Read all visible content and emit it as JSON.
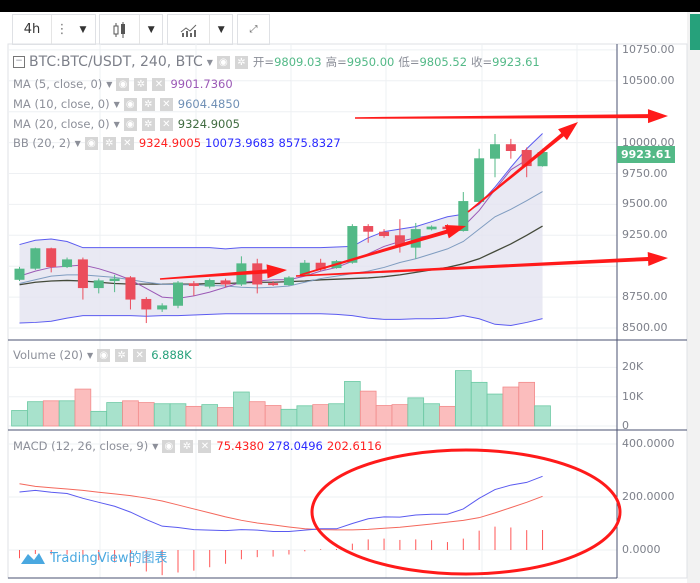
{
  "toolbar": {
    "interval": "4h",
    "more_icon": "vertical-dots-icon",
    "chart_type_icon": "candles-icon",
    "indicators_icon": "indicators-icon",
    "fullscreen_icon": "fullscreen-icon"
  },
  "main_legend": {
    "symbol": "BTC:BTC/USDT, 240, BTC",
    "open_label": "开=",
    "open": "9809.03",
    "high_label": "高=",
    "high": "9950.00",
    "low_label": "低=",
    "low": "9805.52",
    "close_label": "收=",
    "close": "9923.61"
  },
  "indicators": [
    {
      "label": "MA (5, close, 0)",
      "value": "9901.7360",
      "color": "#9b59b6"
    },
    {
      "label": "MA (10, close, 0)",
      "value": "9604.4850",
      "color": "#6f8fb5"
    },
    {
      "label": "MA (20, close, 0)",
      "value": "9324.9005",
      "color": "#3f6b3f"
    },
    {
      "label": "BB (20, 2)",
      "values": [
        "9324.9005",
        "10073.9683",
        "8575.8327"
      ],
      "colors": [
        "#ff2020",
        "#2a2aff",
        "#2a2aff"
      ]
    }
  ],
  "volume_legend": {
    "label": "Volume (20)",
    "value": "6.888K"
  },
  "macd_legend": {
    "label": "MACD (12, 26, close, 9)",
    "hist": "75.4380",
    "macd": "278.0496",
    "signal": "202.6116"
  },
  "last_price": "9923.61",
  "watermark": "TradingView的图表",
  "colors": {
    "up": "#53b987",
    "down": "#eb4d5c",
    "vol_up": "#a8e2cc",
    "vol_down": "#fbbdbd",
    "bb": "#5b5bf0",
    "bb_fill": "#e4e4f0",
    "macd": "#5a5af0",
    "signal": "#f4685c",
    "annotation": "#ff1a1a"
  },
  "chart_data": [
    {
      "type": "candlestick",
      "title": "BTC:BTC/USDT, 240, BTC",
      "ylim": [
        8450,
        10800
      ],
      "yticks": [
        "10750.00",
        "10500.00",
        "10250.00",
        "10000.00",
        "9750.00",
        "9500.00",
        "9250.00",
        "9000.00",
        "8750.00",
        "8500.00"
      ],
      "ohlc": [
        [
          8890,
          8995,
          8880,
          8980
        ],
        [
          8980,
          9150,
          8970,
          9145
        ],
        [
          9145,
          9150,
          8950,
          8993
        ],
        [
          8993,
          9070,
          8985,
          9055
        ],
        [
          9055,
          9070,
          8730,
          8823
        ],
        [
          8823,
          8900,
          8780,
          8885
        ],
        [
          8880,
          8930,
          8790,
          8900
        ],
        [
          8910,
          8920,
          8650,
          8730
        ],
        [
          8735,
          8750,
          8540,
          8650
        ],
        [
          8650,
          8700,
          8630,
          8683
        ],
        [
          8680,
          8880,
          8660,
          8868
        ],
        [
          8862,
          8880,
          8760,
          8840
        ],
        [
          8835,
          8900,
          8820,
          8888
        ],
        [
          8885,
          8900,
          8830,
          8852
        ],
        [
          8852,
          9080,
          8840,
          9023
        ],
        [
          9023,
          9060,
          8780,
          8852
        ],
        [
          8863,
          8880,
          8840,
          8847
        ],
        [
          8847,
          8920,
          8840,
          8909
        ],
        [
          8930,
          9050,
          8920,
          9028
        ],
        [
          9028,
          9060,
          8960,
          8974
        ],
        [
          8985,
          9050,
          8980,
          9041
        ],
        [
          9028,
          9340,
          9020,
          9325
        ],
        [
          9325,
          9340,
          9190,
          9279
        ],
        [
          9279,
          9300,
          9230,
          9244
        ],
        [
          9250,
          9380,
          9110,
          9171
        ],
        [
          9150,
          9350,
          9060,
          9300
        ],
        [
          9298,
          9330,
          9290,
          9320
        ],
        [
          9320,
          9340,
          9280,
          9300
        ],
        [
          9285,
          9600,
          9280,
          9527
        ],
        [
          9520,
          9950,
          9510,
          9873
        ],
        [
          9870,
          10070,
          9720,
          9987
        ],
        [
          9987,
          10030,
          9870,
          9932
        ],
        [
          9940,
          9960,
          9720,
          9810
        ],
        [
          9809.03,
          9950,
          9805.52,
          9923.61
        ]
      ],
      "series": [
        {
          "name": "MA (5, close, 0)",
          "values": [
            8920,
            8960,
            8990,
            9000,
            9010,
            8980,
            8940,
            8890,
            8820,
            8750,
            8740,
            8760,
            8790,
            8830,
            8870,
            8880,
            8890,
            8890,
            8920,
            8960,
            8990,
            9040,
            9100,
            9160,
            9200,
            9230,
            9250,
            9270,
            9320,
            9450,
            9620,
            9780,
            9860,
            9902
          ]
        },
        {
          "name": "MA (10, close, 0)",
          "values": [
            8860,
            8890,
            8920,
            8930,
            8930,
            8920,
            8910,
            8890,
            8870,
            8855,
            8850,
            8850,
            8845,
            8840,
            8830,
            8825,
            8830,
            8840,
            8870,
            8900,
            8920,
            8940,
            8960,
            8990,
            9030,
            9060,
            9100,
            9140,
            9200,
            9300,
            9400,
            9460,
            9530,
            9604
          ]
        },
        {
          "name": "MA (20, close, 0)",
          "values": [
            8850,
            8870,
            8880,
            8885,
            8880,
            8870,
            8860,
            8855,
            8855,
            8855,
            8855,
            8855,
            8860,
            8860,
            8865,
            8870,
            8870,
            8875,
            8880,
            8890,
            8895,
            8900,
            8905,
            8915,
            8930,
            8950,
            8970,
            8990,
            9020,
            9060,
            9120,
            9180,
            9250,
            9325
          ]
        },
        {
          "name": "BB upper",
          "values": [
            9175,
            9210,
            9220,
            9200,
            9150,
            9150,
            9150,
            9150,
            9150,
            9150,
            9150,
            9150,
            9150,
            9140,
            9150,
            9150,
            9150,
            9150,
            9150,
            9150,
            9155,
            9160,
            9230,
            9280,
            9300,
            9320,
            9360,
            9400,
            9420,
            9500,
            9640,
            9800,
            9950,
            10074
          ]
        },
        {
          "name": "BB lower",
          "values": [
            8540,
            8545,
            8555,
            8580,
            8600,
            8600,
            8600,
            8600,
            8595,
            8600,
            8600,
            8605,
            8610,
            8615,
            8615,
            8615,
            8615,
            8615,
            8615,
            8615,
            8610,
            8600,
            8580,
            8570,
            8570,
            8575,
            8575,
            8580,
            8600,
            8575,
            8530,
            8520,
            8545,
            8576
          ]
        }
      ]
    },
    {
      "type": "bar",
      "title": "Volume (20)",
      "ylim": [
        0,
        28000
      ],
      "yticks": [
        "20K",
        "10K",
        "0"
      ],
      "values": [
        5300,
        8300,
        8600,
        8600,
        12600,
        5000,
        8000,
        8600,
        8000,
        7600,
        7600,
        6700,
        7300,
        6300,
        11600,
        8300,
        7000,
        5700,
        6900,
        7300,
        7600,
        15200,
        11900,
        7000,
        7300,
        9600,
        7600,
        6700,
        18900,
        14900,
        10900,
        13300,
        14900,
        6888
      ],
      "up": [
        1,
        1,
        0,
        1,
        0,
        1,
        1,
        0,
        0,
        1,
        1,
        0,
        1,
        0,
        1,
        0,
        0,
        1,
        1,
        0,
        1,
        1,
        0,
        0,
        0,
        1,
        1,
        0,
        1,
        1,
        1,
        0,
        0,
        1
      ]
    },
    {
      "type": "line",
      "title": "MACD (12, 26, close, 9)",
      "ylim": [
        -150,
        450
      ],
      "yticks": [
        "400.0000",
        "200.0000",
        "0.0000"
      ],
      "series": [
        {
          "name": "MACD",
          "values": [
            219,
            225,
            218,
            213,
            195,
            180,
            165,
            143,
            115,
            90,
            85,
            77,
            75,
            73,
            77,
            75,
            70,
            70,
            75,
            80,
            80,
            100,
            118,
            125,
            124,
            132,
            135,
            135,
            155,
            195,
            228,
            245,
            255,
            278.05
          ]
        },
        {
          "name": "Signal",
          "values": [
            250,
            240,
            235,
            230,
            225,
            218,
            212,
            205,
            196,
            185,
            170,
            155,
            140,
            125,
            112,
            102,
            95,
            87,
            80,
            77,
            76,
            76,
            78,
            82,
            86,
            92,
            98,
            105,
            112,
            122,
            140,
            160,
            180,
            202.61
          ]
        },
        {
          "name": "Histogram",
          "values": [
            -31,
            -15,
            -17,
            -17,
            -30,
            -38,
            -47,
            -62,
            -81,
            -95,
            -85,
            -78,
            -65,
            -52,
            -35,
            -27,
            -25,
            -17,
            -5,
            3,
            4,
            24,
            40,
            43,
            38,
            40,
            37,
            30,
            43,
            73,
            88,
            85,
            75,
            75.44
          ]
        }
      ]
    }
  ]
}
